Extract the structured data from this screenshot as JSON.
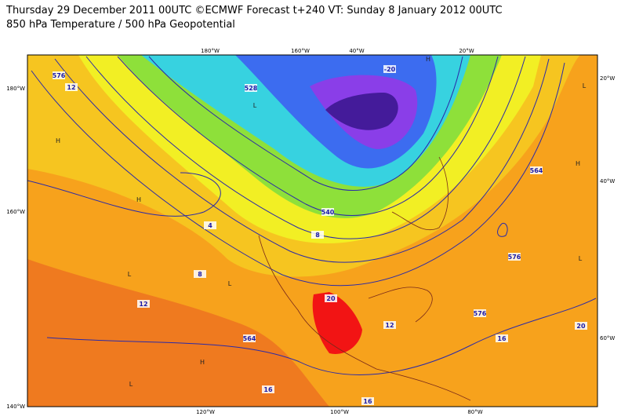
{
  "header": {
    "title": "Thursday 29 December 2011 00UTC ©ECMWF Forecast t+240 VT: Sunday 8 January 2012 00UTC",
    "subtitle": "850 hPa Temperature / 500 hPa Geopotential"
  },
  "map": {
    "top_labels": [
      "180°W",
      "160°W",
      "40°W",
      "20°W"
    ],
    "left_labels": [
      "180°W",
      "160°W",
      "140°W"
    ],
    "bottom_labels": [
      "120°W",
      "100°W",
      "80°W"
    ],
    "right_labels": [
      "20°W",
      "40°W",
      "60°W"
    ],
    "contour_labels": [
      "576",
      "12",
      "528",
      "-20",
      "4",
      "8",
      "540",
      "8",
      "12",
      "564",
      "16",
      "20",
      "12",
      "16",
      "16",
      "576",
      "20",
      "576",
      "564"
    ],
    "pressure_centers": [
      "H",
      "H",
      "L",
      "L",
      "H",
      "L",
      "H",
      "L",
      "L",
      "H",
      "L"
    ]
  }
}
